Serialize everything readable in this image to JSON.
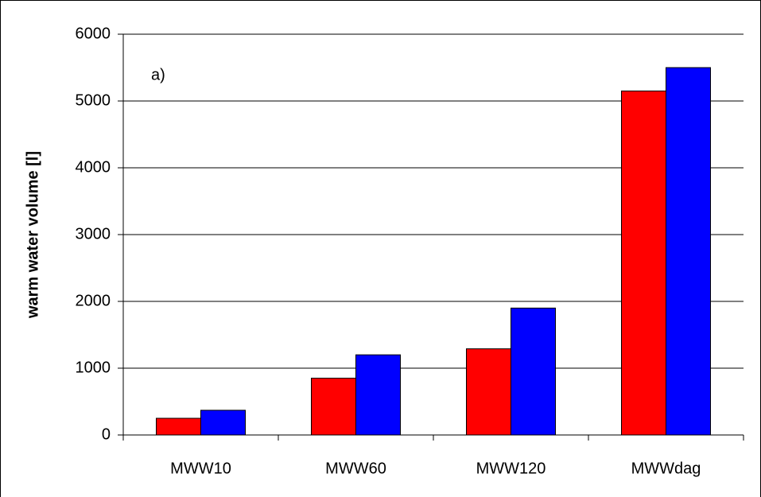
{
  "chart_data": {
    "type": "bar",
    "annotation": "a)",
    "y_label": "warm water volume [l]",
    "categories": [
      "MWW10",
      "MWW60",
      "MWW120",
      "MWWdag"
    ],
    "series": [
      {
        "color": "#ff0000",
        "values": [
          250,
          850,
          1290,
          5150
        ]
      },
      {
        "color": "#0000ff",
        "values": [
          370,
          1200,
          1900,
          5500
        ]
      }
    ],
    "ylim": [
      0,
      6000
    ],
    "yticks": [
      0,
      1000,
      2000,
      3000,
      4000,
      5000,
      6000
    ],
    "grid": true
  }
}
